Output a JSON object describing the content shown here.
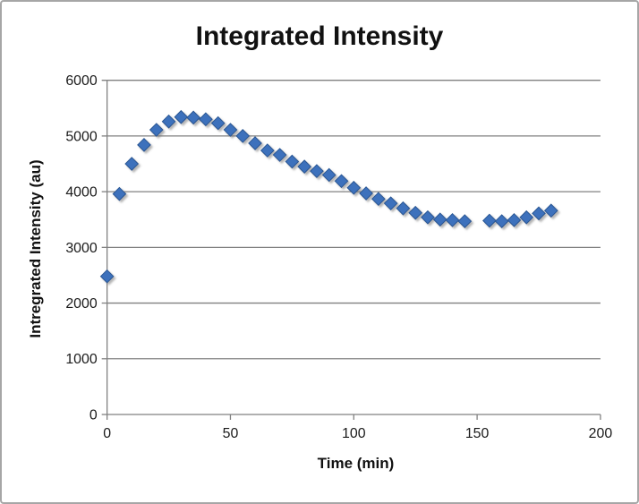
{
  "chart_data": {
    "type": "scatter",
    "title": "Integrated Intensity",
    "xlabel": "Time (min)",
    "ylabel": "Intregrated Intensity (au)",
    "xlim": [
      0,
      200
    ],
    "ylim": [
      0,
      6000
    ],
    "x_ticks": [
      0,
      50,
      100,
      150,
      200
    ],
    "y_ticks": [
      0,
      1000,
      2000,
      3000,
      4000,
      5000,
      6000
    ],
    "grid": "horizontal-major",
    "legend": "none",
    "marker_shape": "diamond",
    "colors": {
      "marker_fill": "#3D71BC",
      "marker_stroke": "#2A5793",
      "marker_shadow": "#777777",
      "axis": "#808080",
      "gridline": "#808080",
      "tick_text": "#1a1a1a",
      "frame_border": "#a6a6a6",
      "background": "#ffffff"
    },
    "series": [
      {
        "name": "Integrated Intensity",
        "points": [
          [
            0,
            2480
          ],
          [
            5,
            3960
          ],
          [
            10,
            4500
          ],
          [
            15,
            4840
          ],
          [
            20,
            5110
          ],
          [
            25,
            5260
          ],
          [
            30,
            5340
          ],
          [
            35,
            5330
          ],
          [
            40,
            5300
          ],
          [
            45,
            5230
          ],
          [
            50,
            5110
          ],
          [
            55,
            5000
          ],
          [
            60,
            4870
          ],
          [
            65,
            4740
          ],
          [
            70,
            4660
          ],
          [
            75,
            4540
          ],
          [
            80,
            4450
          ],
          [
            85,
            4370
          ],
          [
            90,
            4300
          ],
          [
            95,
            4190
          ],
          [
            100,
            4070
          ],
          [
            105,
            3970
          ],
          [
            110,
            3870
          ],
          [
            115,
            3790
          ],
          [
            120,
            3700
          ],
          [
            125,
            3620
          ],
          [
            130,
            3540
          ],
          [
            135,
            3500
          ],
          [
            140,
            3490
          ],
          [
            145,
            3470
          ],
          [
            155,
            3480
          ],
          [
            160,
            3470
          ],
          [
            165,
            3490
          ],
          [
            170,
            3540
          ],
          [
            175,
            3610
          ],
          [
            180,
            3660
          ]
        ]
      }
    ]
  }
}
